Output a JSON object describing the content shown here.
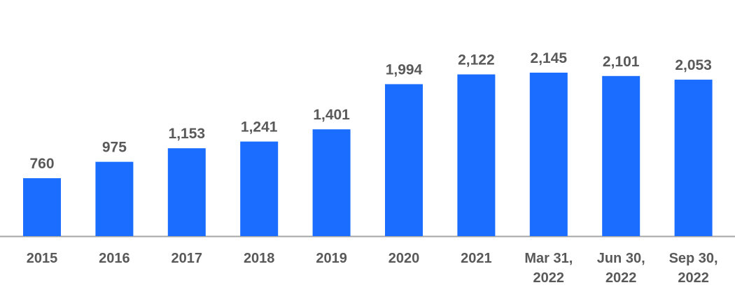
{
  "chart_data": {
    "type": "bar",
    "categories": [
      "2015",
      "2016",
      "2017",
      "2018",
      "2019",
      "2020",
      "2021",
      "Mar 31, 2022",
      "Jun 30, 2022",
      "Sep 30, 2022"
    ],
    "values": [
      760,
      975,
      1153,
      1241,
      1401,
      1994,
      2122,
      2145,
      2101,
      2053
    ],
    "value_labels": [
      "760",
      "975",
      "1,153",
      "1,241",
      "1,401",
      "1,994",
      "2,122",
      "2,145",
      "2,101",
      "2,053"
    ],
    "color": "#1a6dff"
  }
}
